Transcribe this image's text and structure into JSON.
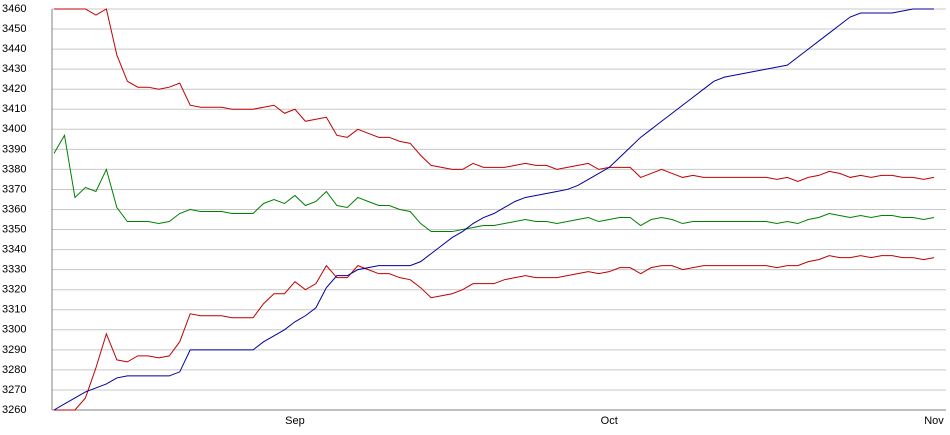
{
  "chart_data": {
    "type": "line",
    "categories": [
      null,
      null,
      null,
      null,
      null,
      null,
      null,
      null,
      null,
      null,
      null,
      null,
      null,
      null,
      null,
      null,
      null,
      null,
      null,
      null,
      null,
      null,
      null,
      "Sep",
      null,
      null,
      null,
      null,
      null,
      null,
      null,
      null,
      null,
      null,
      null,
      null,
      null,
      null,
      null,
      null,
      null,
      null,
      null,
      null,
      null,
      null,
      null,
      null,
      null,
      null,
      null,
      null,
      null,
      "Oct",
      null,
      null,
      null,
      null,
      null,
      null,
      null,
      null,
      null,
      null,
      null,
      null,
      null,
      null,
      null,
      null,
      null,
      null,
      null,
      null,
      null,
      null,
      null,
      null,
      null,
      null,
      null,
      null,
      null,
      null,
      "Nov"
    ],
    "series": [
      {
        "color": "#c00000",
        "values": [
          3460,
          3460,
          3460,
          3460,
          3457,
          3460,
          3437,
          3424,
          3421,
          3421,
          3420,
          3421,
          3423,
          3412,
          3411,
          3411,
          3411,
          3410,
          3410,
          3410,
          3411,
          3412,
          3408,
          3410,
          3404,
          3405,
          3406,
          3397,
          3396,
          3400,
          3398,
          3396,
          3396,
          3394,
          3393,
          3387,
          3382,
          3381,
          3380,
          3380,
          3383,
          3381,
          3381,
          3381,
          3382,
          3383,
          3382,
          3382,
          3380,
          3381,
          3382,
          3383,
          3380,
          3381,
          3381,
          3381,
          3376,
          3378,
          3380,
          3378,
          3376,
          3377,
          3376,
          3376,
          3376,
          3376,
          3376,
          3376,
          3376,
          3375,
          3376,
          3374,
          3376,
          3377,
          3379,
          3378,
          3376,
          3377,
          3376,
          3377,
          3377,
          3376,
          3376,
          3375,
          3376
        ]
      },
      {
        "color": "#008000",
        "values": [
          3388,
          3397,
          3366,
          3371,
          3369,
          3380,
          3361,
          3354,
          3354,
          3354,
          3353,
          3354,
          3358,
          3360,
          3359,
          3359,
          3359,
          3358,
          3358,
          3358,
          3363,
          3365,
          3363,
          3367,
          3362,
          3364,
          3369,
          3362,
          3361,
          3366,
          3364,
          3362,
          3362,
          3360,
          3359,
          3353,
          3349,
          3349,
          3349,
          3350,
          3351,
          3352,
          3352,
          3353,
          3354,
          3355,
          3354,
          3354,
          3353,
          3354,
          3355,
          3356,
          3354,
          3355,
          3356,
          3356,
          3352,
          3355,
          3356,
          3355,
          3353,
          3354,
          3354,
          3354,
          3354,
          3354,
          3354,
          3354,
          3354,
          3353,
          3354,
          3353,
          3355,
          3356,
          3358,
          3357,
          3356,
          3357,
          3356,
          3357,
          3357,
          3356,
          3356,
          3355,
          3356
        ]
      },
      {
        "color": "#c00000",
        "values": [
          3260,
          3260,
          3260,
          3266,
          3281,
          3298,
          3285,
          3284,
          3287,
          3287,
          3286,
          3287,
          3294,
          3308,
          3307,
          3307,
          3307,
          3306,
          3306,
          3306,
          3313,
          3318,
          3318,
          3324,
          3320,
          3323,
          3332,
          3326,
          3326,
          3332,
          3330,
          3328,
          3328,
          3326,
          3325,
          3321,
          3316,
          3317,
          3318,
          3320,
          3323,
          3323,
          3323,
          3325,
          3326,
          3327,
          3326,
          3326,
          3326,
          3327,
          3328,
          3329,
          3328,
          3329,
          3331,
          3331,
          3328,
          3331,
          3332,
          3332,
          3330,
          3331,
          3332,
          3332,
          3332,
          3332,
          3332,
          3332,
          3332,
          3331,
          3332,
          3332,
          3334,
          3335,
          3337,
          3336,
          3336,
          3337,
          3336,
          3337,
          3337,
          3336,
          3336,
          3335,
          3336
        ]
      },
      {
        "color": "#0000a0",
        "values": [
          3260,
          3263,
          3266,
          3269,
          3271,
          3273,
          3276,
          3277,
          3277,
          3277,
          3277,
          3277,
          3279,
          3290,
          3290,
          3290,
          3290,
          3290,
          3290,
          3290,
          3294,
          3297,
          3300,
          3304,
          3307,
          3311,
          3321,
          3327,
          3327,
          3330,
          3331,
          3332,
          3332,
          3332,
          3332,
          3334,
          3338,
          3342,
          3346,
          3349,
          3353,
          3356,
          3358,
          3361,
          3364,
          3366,
          3367,
          3368,
          3369,
          3370,
          3372,
          3375,
          3378,
          3381,
          3386,
          3391,
          3396,
          3400,
          3404,
          3408,
          3412,
          3416,
          3420,
          3424,
          3426,
          3427,
          3428,
          3429,
          3430,
          3431,
          3432,
          3436,
          3440,
          3444,
          3448,
          3452,
          3456,
          3458,
          3458,
          3458,
          3458,
          3459,
          3460,
          3460,
          3460
        ]
      }
    ],
    "ylim": [
      3260,
      3460
    ],
    "yticks": [
      3260,
      3270,
      3280,
      3290,
      3300,
      3310,
      3320,
      3330,
      3340,
      3350,
      3360,
      3370,
      3380,
      3390,
      3400,
      3410,
      3420,
      3430,
      3440,
      3450,
      3460
    ],
    "grid": true
  }
}
